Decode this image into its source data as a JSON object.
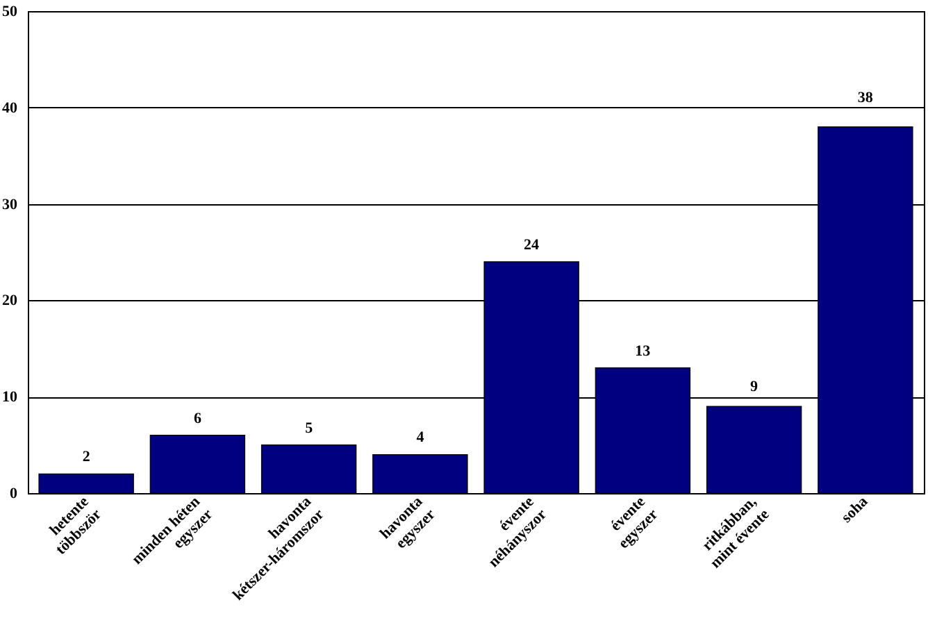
{
  "chart_data": {
    "type": "bar",
    "categories": [
      "hetente\ntöbbször",
      "minden héten\negyszer",
      "havonta\nkétszer-háromszor",
      "havonta\negyszer",
      "évente\nnéhányszor",
      "évente\negyszer",
      "ritkábban,\nmint évente",
      "soha"
    ],
    "values": [
      2,
      6,
      5,
      4,
      24,
      13,
      9,
      38
    ],
    "color": "#000080",
    "ylim": [
      0,
      50
    ],
    "yticks": [
      0,
      10,
      20,
      30,
      40,
      50
    ],
    "grid": "y",
    "data_labels": true
  }
}
